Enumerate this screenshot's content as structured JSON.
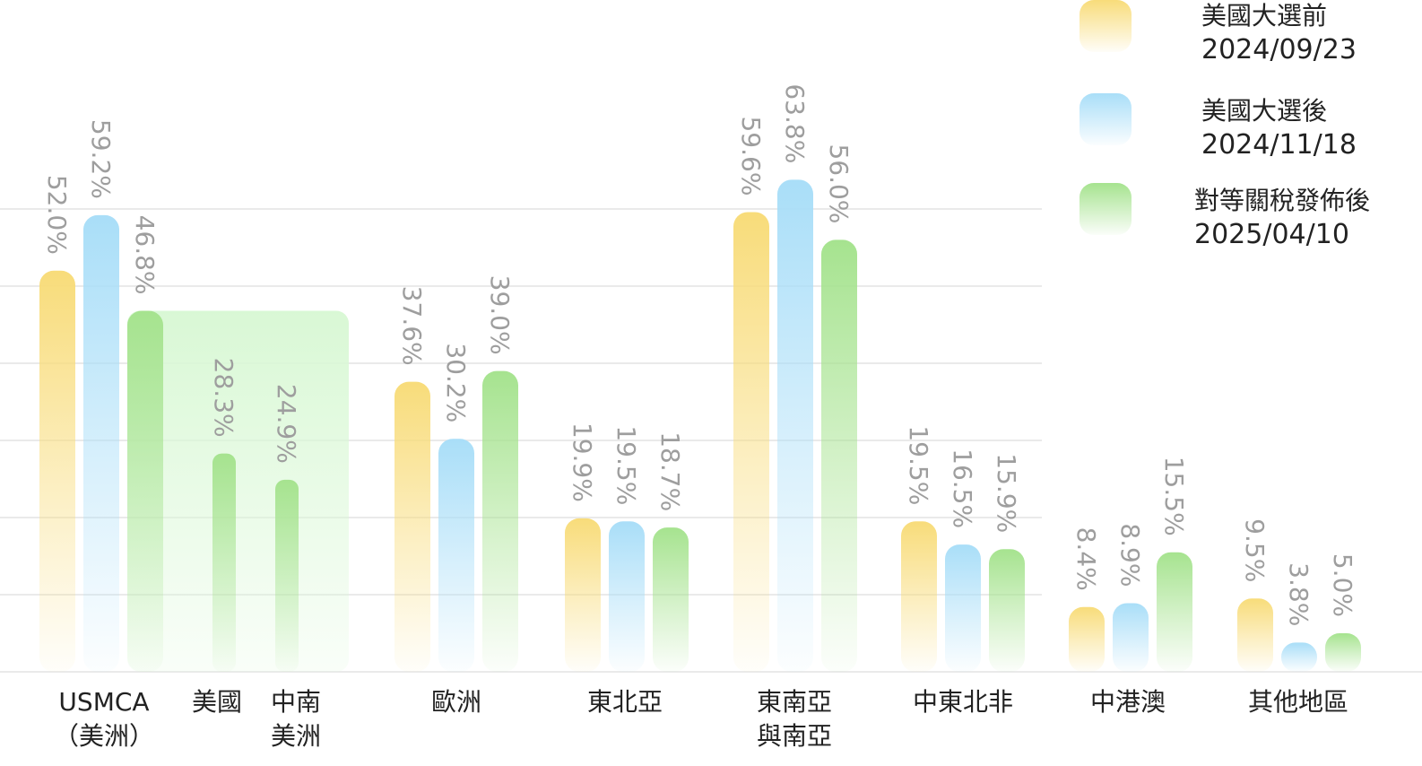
{
  "colors": {
    "before": "#f8dc7a",
    "after": "#a9def8",
    "tariff": "#a6e38f",
    "group_bg": "#d9f8d5",
    "grid": "#e3e3e3",
    "value_text": "#9e9e9e",
    "category_text": "#222222"
  },
  "legend": [
    {
      "label": "美國大選前",
      "date": "2024/09/23",
      "color": "#f8dc7a"
    },
    {
      "label": "美國大選後",
      "date": "2024/11/18",
      "color": "#a9def8"
    },
    {
      "label": "對等關稅發佈後",
      "date": "2025/04/10",
      "color": "#a6e38f"
    }
  ],
  "chart_data": {
    "type": "bar",
    "unit": "%",
    "ylim": [
      0,
      70
    ],
    "grid": true,
    "legend_position": "top-right",
    "series": [
      {
        "key": "before",
        "color": "#f8dc7a"
      },
      {
        "key": "after",
        "color": "#a9def8"
      },
      {
        "key": "tariff",
        "color": "#a6e38f"
      }
    ],
    "groups": [
      {
        "category": [
          "USMCA",
          "（美洲）"
        ],
        "values": {
          "before": 52.0,
          "after": 59.2,
          "tariff": 46.8
        },
        "labels": {
          "before": "52.0%",
          "after": "59.2%",
          "tariff": "46.8%"
        },
        "sub_categories": [
          {
            "category": [
              "美國"
            ],
            "value": 28.3,
            "label": "28.3%"
          },
          {
            "category": [
              "中南",
              "美洲"
            ],
            "value": 24.9,
            "label": "24.9%"
          }
        ]
      },
      {
        "category": [
          "歐洲"
        ],
        "values": {
          "before": 37.6,
          "after": 30.2,
          "tariff": 39.0
        },
        "labels": {
          "before": "37.6%",
          "after": "30.2%",
          "tariff": "39.0%"
        }
      },
      {
        "category": [
          "東北亞"
        ],
        "values": {
          "before": 19.9,
          "after": 19.5,
          "tariff": 18.7
        },
        "labels": {
          "before": "19.9%",
          "after": "19.5%",
          "tariff": "18.7%"
        }
      },
      {
        "category": [
          "東南亞",
          "與南亞"
        ],
        "values": {
          "before": 59.6,
          "after": 63.8,
          "tariff": 56.0
        },
        "labels": {
          "before": "59.6%",
          "after": "63.8%",
          "tariff": "56.0%"
        }
      },
      {
        "category": [
          "中東北非"
        ],
        "values": {
          "before": 19.5,
          "after": 16.5,
          "tariff": 15.9
        },
        "labels": {
          "before": "19.5%",
          "after": "16.5%",
          "tariff": "15.9%"
        }
      },
      {
        "category": [
          "中港澳"
        ],
        "values": {
          "before": 8.4,
          "after": 8.9,
          "tariff": 15.5
        },
        "labels": {
          "before": "8.4%",
          "after": "8.9%",
          "tariff": "15.5%"
        }
      },
      {
        "category": [
          "其他地區"
        ],
        "values": {
          "before": 9.5,
          "after": 3.8,
          "tariff": 5.0
        },
        "labels": {
          "before": "9.5%",
          "after": "3.8%",
          "tariff": "5.0%"
        }
      }
    ]
  }
}
